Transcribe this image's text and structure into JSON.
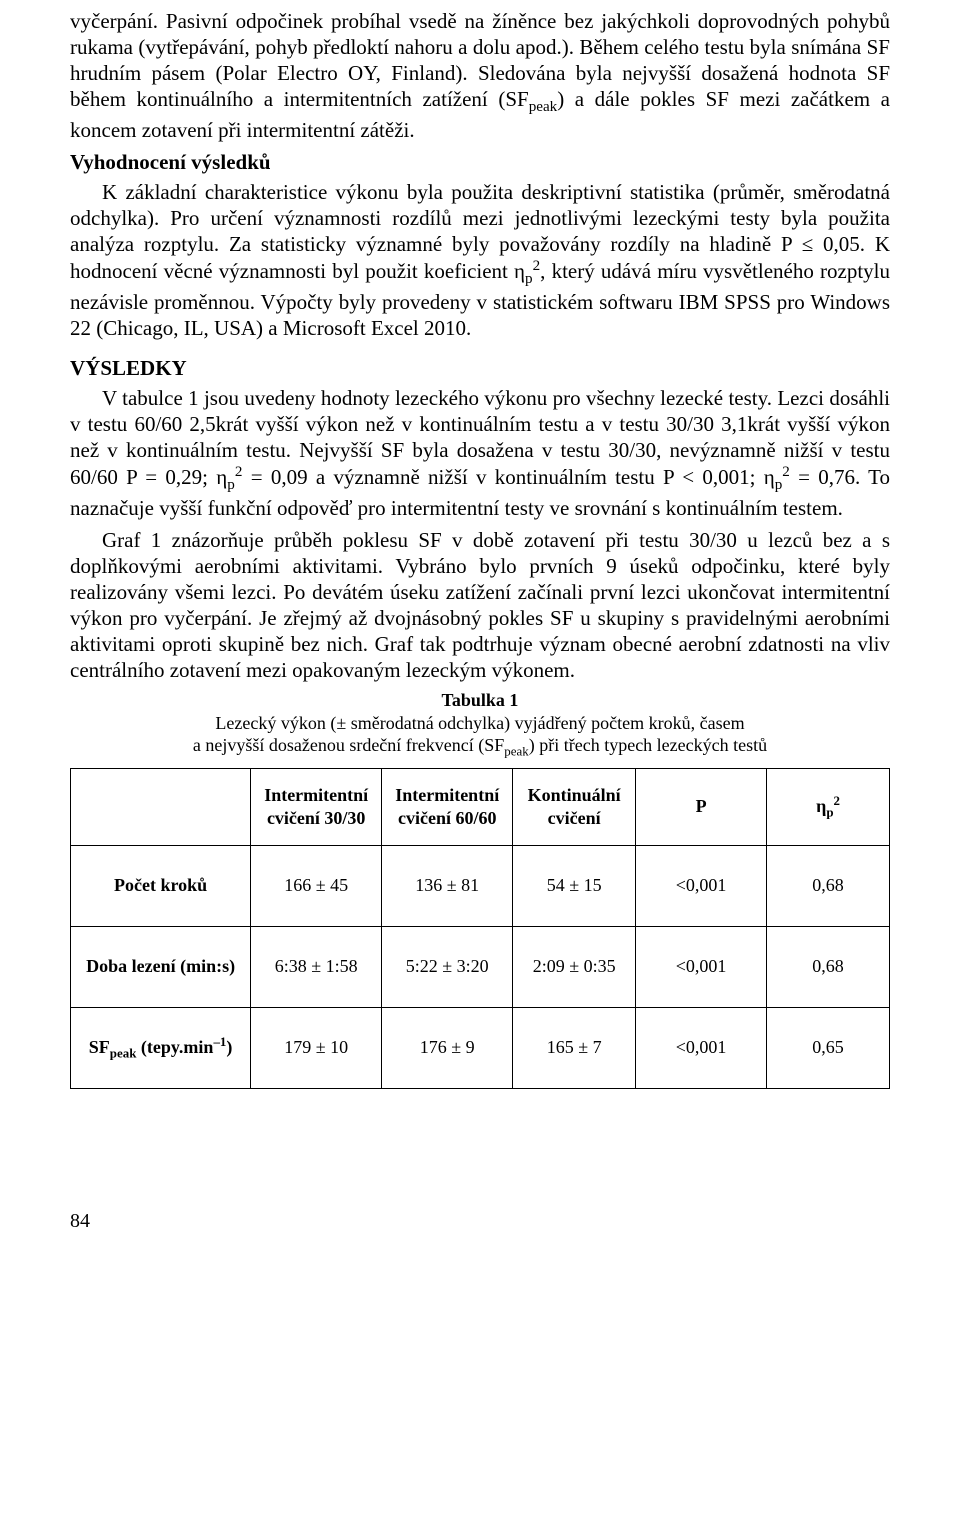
{
  "body": {
    "p1": "vyčerpání. Pasivní odpočinek probíhal vsedě na žíněnce bez jakýchkoli doprovodných pohybů rukama (vytřepávání, pohyb předloktí nahoru a dolu apod.). Během celého testu byla snímána SF hrudním pásem (Polar Electro OY, Finland). Sledována byla nejvyšší dosažená hodnota SF během kontinuálního a intermitentních zatížení (SF",
    "p1_sub": "peak",
    "p1b": ") a dále pokles SF mezi začátkem a koncem zotavení při intermitentní zátěži.",
    "h1": "Vyhodnocení výsledků",
    "p2a": "K základní charakteristice výkonu byla použita deskriptivní statistika (průměr, směrodatná odchylka). Pro určení významnosti rozdílů mezi jednotlivými lezeckými testy byla použita analýza rozptylu. Za statisticky významné byly považovány rozdíly na hladině P ≤ 0,05. K hodnocení věcné významnosti byl použit koeficient η",
    "p2_sub": "p",
    "p2_sup": "2",
    "p2b": ", který udává míru vysvětleného rozptylu nezávisle proměnnou. Výpočty byly provedeny v statistickém softwaru IBM SPSS pro Windows 22 (Chicago, IL, USA) a Microsoft Excel 2010.",
    "h2": "VÝSLEDKY",
    "p3a": "V tabulce 1 jsou uvedeny hodnoty lezeckého výkonu pro všechny lezecké testy. Lezci dosáhli v testu 60/60 2,5krát vyšší výkon než v kontinuálním testu a v testu 30/30 3,1krát vyšší výkon než v kontinuálním testu. Nejvyšší SF byla dosažena v testu 30/30, nevýznamně nižší v testu 60/60 P = 0,29; η",
    "p3_sub1": "p",
    "p3_sup1": "2",
    "p3b": " = 0,09 a významně nižší v kontinuálním testu P < 0,001; η",
    "p3_sub2": "p",
    "p3_sup2": "2",
    "p3c": " = 0,76. To naznačuje vyšší funkční odpověď pro intermitentní testy ve srovnání s kontinuálním testem.",
    "p4": "Graf 1 znázorňuje průběh poklesu SF v době zotavení při testu 30/30 u lezců bez a s doplňkovými aerobními aktivitami. Vybráno bylo prvních 9 úseků odpočinku, které byly realizovány všemi lezci. Po devátém úseku zatížení začínali první lezci ukončovat intermitentní výkon pro vyčerpání. Je zřejmý až dvojnásobný pokles SF u skupiny s pravidelnými aerobními aktivitami oproti skupině bez nich.  Graf tak podtrhuje význam obecné aerobní zdatnosti na vliv centrálního zotavení mezi opakovaným lezeckým výkonem."
  },
  "table": {
    "caption_title": "Tabulka 1",
    "caption_line1": "Lezecký výkon (± směrodatná odchylka) vyjádřený počtem kroků, časem",
    "caption_line2a": "a nejvyšší dosaženou srdeční frekvencí (SF",
    "caption_sub": "peak",
    "caption_line2b": ") při třech typech lezeckých testů",
    "headers": {
      "c1": "",
      "c2a": "Intermitentní",
      "c2b": "cvičení 30/30",
      "c3a": "Intermitentní",
      "c3b": "cvičení 60/60",
      "c4a": "Kontinuální",
      "c4b": "cvičení",
      "c5": "P",
      "c6a": "η",
      "c6_sub": "p",
      "c6_sup": "2"
    },
    "rows": [
      {
        "label": "Počet kroků",
        "c2": "166 ± 45",
        "c3": "136 ± 81",
        "c4": "54 ± 15",
        "c5": "<0,001",
        "c6": "0,68"
      },
      {
        "label": "Doba lezení (min:s)",
        "c2": "6:38 ± 1:58",
        "c3": "5:22 ± 3:20",
        "c4": "2:09 ± 0:35",
        "c5": "<0,001",
        "c6": "0,68"
      },
      {
        "label_a": "SF",
        "label_sub": "peak",
        "label_b": " (tepy.min",
        "label_sup": "–1",
        "label_c": ")",
        "c2": "179 ± 10",
        "c3": "176 ± 9",
        "c4": "165 ± 7",
        "c5": "<0,001",
        "c6": "0,65"
      }
    ]
  },
  "page_number": "84"
}
